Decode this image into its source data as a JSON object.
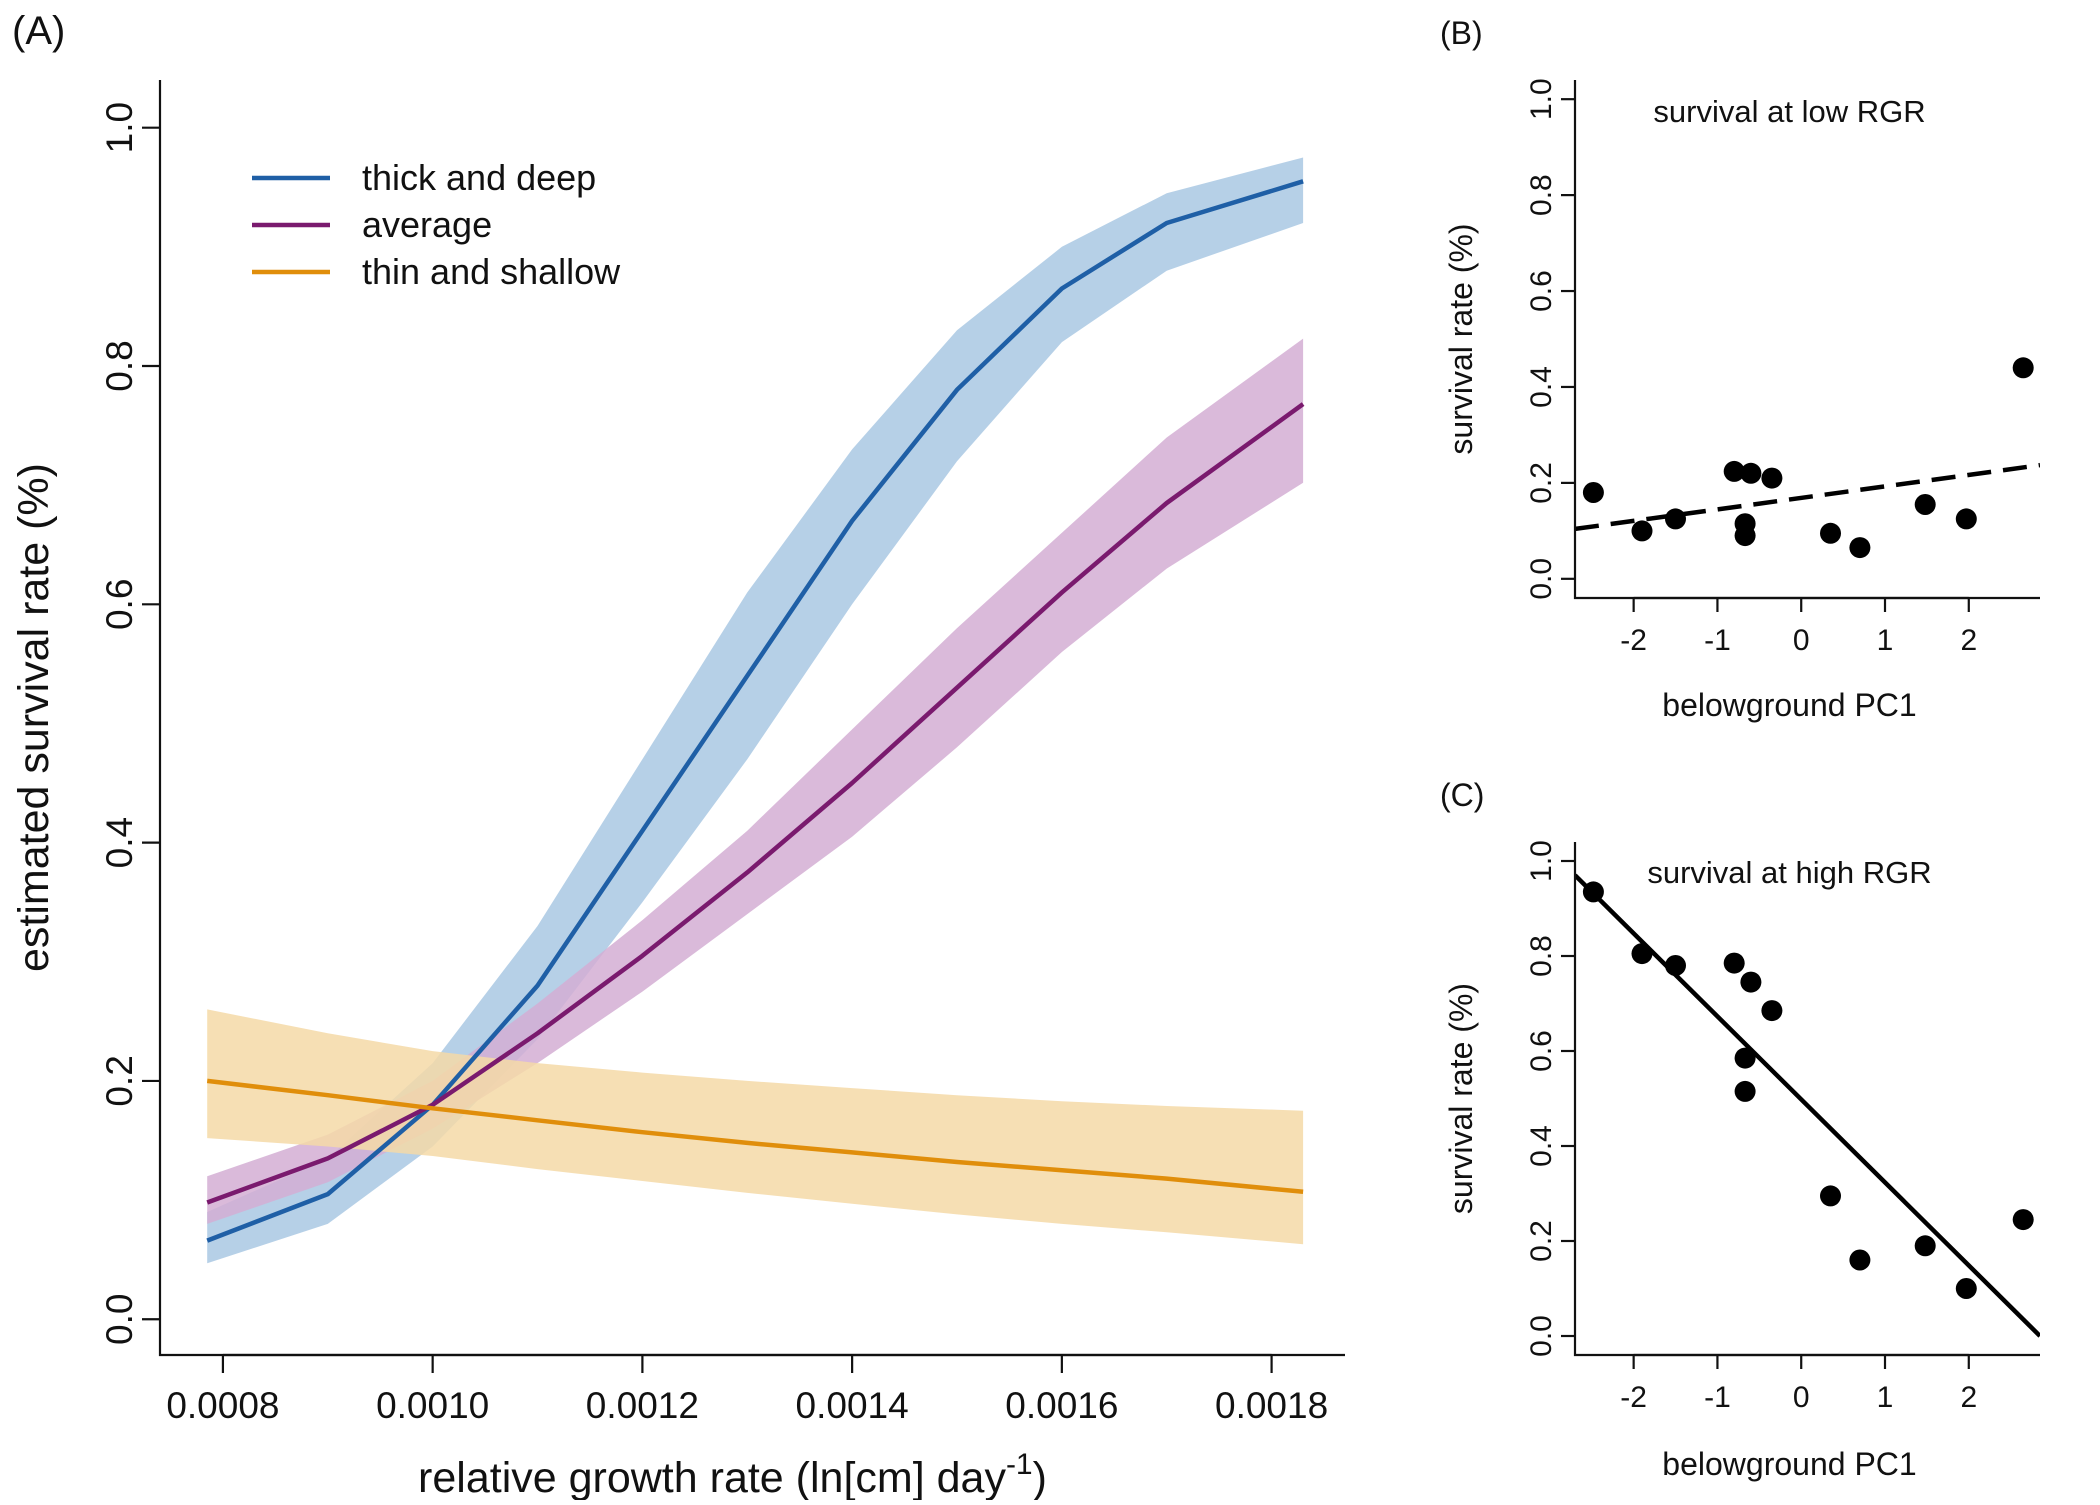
{
  "chart_data": [
    {
      "panel_label": "(A)",
      "type": "line",
      "xlabel": "relative growth rate (ln[cm] day",
      "xlabel_sup": "-1",
      "xlabel_end": ")",
      "ylabel": "estimated survival rate (%)",
      "xlim": [
        0.00074,
        0.00187
      ],
      "ylim": [
        -0.03,
        1.04
      ],
      "x_ticks": [
        0.0008,
        0.001,
        0.0012,
        0.0014,
        0.0016,
        0.0018
      ],
      "x_tick_labels": [
        "0.0008",
        "0.0010",
        "0.0012",
        "0.0014",
        "0.0016",
        "0.0018"
      ],
      "y_ticks": [
        0.0,
        0.2,
        0.4,
        0.6,
        0.8,
        1.0
      ],
      "y_tick_labels": [
        "0.0",
        "0.2",
        "0.4",
        "0.6",
        "0.8",
        "1.0"
      ],
      "grid": false,
      "legend_position": "top-left",
      "series": [
        {
          "name": "thick and deep",
          "color": "#1f5fa6",
          "band_color": "#a9c8e3",
          "x": [
            0.000785,
            0.0009,
            0.001,
            0.0011,
            0.0012,
            0.0013,
            0.0014,
            0.0015,
            0.0016,
            0.0017,
            0.00183
          ],
          "y": [
            0.066,
            0.105,
            0.18,
            0.28,
            0.41,
            0.54,
            0.67,
            0.78,
            0.865,
            0.92,
            0.955
          ],
          "lower": [
            0.047,
            0.08,
            0.145,
            0.235,
            0.35,
            0.47,
            0.6,
            0.72,
            0.82,
            0.88,
            0.92
          ],
          "upper": [
            0.09,
            0.135,
            0.215,
            0.33,
            0.47,
            0.61,
            0.73,
            0.83,
            0.9,
            0.945,
            0.975
          ]
        },
        {
          "name": "average",
          "color": "#7a1a6e",
          "band_color": "#d3aed4",
          "x": [
            0.000785,
            0.0009,
            0.001,
            0.0011,
            0.0012,
            0.0013,
            0.0014,
            0.0015,
            0.0016,
            0.0017,
            0.00183
          ],
          "y": [
            0.098,
            0.135,
            0.18,
            0.24,
            0.305,
            0.375,
            0.45,
            0.53,
            0.61,
            0.685,
            0.768
          ],
          "lower": [
            0.08,
            0.115,
            0.16,
            0.215,
            0.275,
            0.34,
            0.405,
            0.48,
            0.56,
            0.63,
            0.702
          ],
          "upper": [
            0.12,
            0.155,
            0.2,
            0.265,
            0.335,
            0.41,
            0.495,
            0.58,
            0.66,
            0.74,
            0.823
          ]
        },
        {
          "name": "thin and shallow",
          "color": "#e08e0b",
          "band_color": "#f5d9a7",
          "x": [
            0.000785,
            0.0009,
            0.001,
            0.0011,
            0.0012,
            0.0013,
            0.0014,
            0.0015,
            0.0016,
            0.0017,
            0.00183
          ],
          "y": [
            0.2,
            0.188,
            0.177,
            0.167,
            0.157,
            0.148,
            0.14,
            0.132,
            0.125,
            0.118,
            0.107
          ],
          "lower": [
            0.152,
            0.145,
            0.137,
            0.126,
            0.116,
            0.106,
            0.097,
            0.088,
            0.08,
            0.073,
            0.063
          ],
          "upper": [
            0.26,
            0.24,
            0.225,
            0.215,
            0.207,
            0.2,
            0.194,
            0.188,
            0.183,
            0.179,
            0.175
          ]
        }
      ]
    },
    {
      "panel_label": "(B)",
      "type": "scatter",
      "title": "survival at low RGR",
      "xlabel": "belowground PC1",
      "ylabel": "survival rate (%)",
      "xlim": [
        -2.7,
        2.85
      ],
      "ylim": [
        -0.04,
        1.04
      ],
      "x_ticks": [
        -2,
        -1,
        0,
        1,
        2
      ],
      "x_tick_labels": [
        "-2",
        "-1",
        "0",
        "1",
        "2"
      ],
      "y_ticks": [
        0.0,
        0.2,
        0.4,
        0.6,
        0.8,
        1.0
      ],
      "y_tick_labels": [
        "0.0",
        "0.2",
        "0.4",
        "0.6",
        "0.8",
        "1.0"
      ],
      "grid": false,
      "points": [
        {
          "x": -2.48,
          "y": 0.18
        },
        {
          "x": -1.9,
          "y": 0.1
        },
        {
          "x": -1.5,
          "y": 0.125
        },
        {
          "x": -0.8,
          "y": 0.224
        },
        {
          "x": -0.6,
          "y": 0.22
        },
        {
          "x": -0.35,
          "y": 0.21
        },
        {
          "x": -0.67,
          "y": 0.115
        },
        {
          "x": -0.67,
          "y": 0.09
        },
        {
          "x": 0.35,
          "y": 0.095
        },
        {
          "x": 0.7,
          "y": 0.065
        },
        {
          "x": 1.48,
          "y": 0.155
        },
        {
          "x": 1.97,
          "y": 0.125
        },
        {
          "x": 2.65,
          "y": 0.44
        }
      ],
      "fit": {
        "x": [
          -2.7,
          2.85
        ],
        "y": [
          0.104,
          0.237
        ],
        "style": "dashed"
      }
    },
    {
      "panel_label": "(C)",
      "type": "scatter",
      "title": "survival at high RGR",
      "xlabel": "belowground PC1",
      "ylabel": "survival rate (%)",
      "xlim": [
        -2.7,
        2.85
      ],
      "ylim": [
        -0.04,
        1.04
      ],
      "x_ticks": [
        -2,
        -1,
        0,
        1,
        2
      ],
      "x_tick_labels": [
        "-2",
        "-1",
        "0",
        "1",
        "2"
      ],
      "y_ticks": [
        0.0,
        0.2,
        0.4,
        0.6,
        0.8,
        1.0
      ],
      "y_tick_labels": [
        "0.0",
        "0.2",
        "0.4",
        "0.6",
        "0.8",
        "1.0"
      ],
      "grid": false,
      "points": [
        {
          "x": -2.48,
          "y": 0.935
        },
        {
          "x": -1.9,
          "y": 0.805
        },
        {
          "x": -1.5,
          "y": 0.78
        },
        {
          "x": -0.8,
          "y": 0.785
        },
        {
          "x": -0.6,
          "y": 0.745
        },
        {
          "x": -0.35,
          "y": 0.685
        },
        {
          "x": -0.67,
          "y": 0.585
        },
        {
          "x": -0.67,
          "y": 0.515
        },
        {
          "x": 0.35,
          "y": 0.295
        },
        {
          "x": 0.7,
          "y": 0.16
        },
        {
          "x": 1.48,
          "y": 0.19
        },
        {
          "x": 1.97,
          "y": 0.1
        },
        {
          "x": 2.65,
          "y": 0.245
        }
      ],
      "fit": {
        "x": [
          -2.7,
          2.85
        ],
        "y": [
          0.97,
          0.0
        ],
        "style": "solid"
      }
    }
  ]
}
